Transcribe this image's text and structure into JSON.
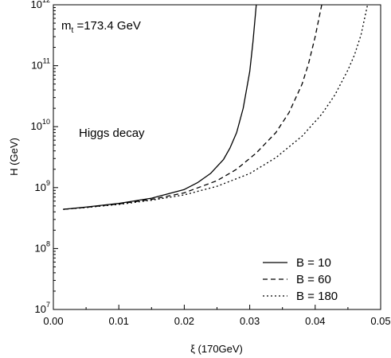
{
  "chart_data": {
    "type": "line",
    "xlabel": "ξ (170GeV)",
    "ylabel": "H (GeV)",
    "xlim": [
      0,
      0.05
    ],
    "ylim": [
      10000000,
      1000000000000
    ],
    "yscale": "log",
    "x_ticks": [
      0,
      0.01,
      0.02,
      0.03,
      0.04,
      0.05
    ],
    "x_tick_labels": [
      "0.00",
      "0.01",
      "0.02",
      "0.03",
      "0.04",
      "0.05"
    ],
    "y_ticks": [
      7,
      8,
      9,
      10,
      11,
      12
    ],
    "y_tick_labels": [
      {
        "base": "10",
        "exp": "7"
      },
      {
        "base": "10",
        "exp": "8"
      },
      {
        "base": "10",
        "exp": "9"
      },
      {
        "base": "10",
        "exp": "10"
      },
      {
        "base": "10",
        "exp": "11"
      },
      {
        "base": "10",
        "exp": "12"
      }
    ],
    "annotations": {
      "mass": {
        "main": "m",
        "sub": "t",
        "rest": " =173.4 GeV"
      },
      "process": "Higgs decay"
    },
    "legend_position": "bottom-right",
    "grid": false,
    "series": [
      {
        "name": "B = 10",
        "style": "solid",
        "x": [
          0.0015,
          0.005,
          0.01,
          0.015,
          0.02,
          0.022,
          0.024,
          0.026,
          0.027,
          0.028,
          0.029,
          0.03,
          0.0305,
          0.031
        ],
        "y": [
          440000000,
          480000000,
          550000000,
          670000000,
          930000000,
          1200000000,
          1700000000,
          2900000000,
          4500000000,
          8000000000,
          20000000000,
          80000000000,
          250000000000,
          1000000000000
        ]
      },
      {
        "name": "B = 60",
        "style": "dashed",
        "x": [
          0.0015,
          0.005,
          0.01,
          0.015,
          0.02,
          0.025,
          0.028,
          0.031,
          0.034,
          0.036,
          0.038,
          0.039,
          0.04,
          0.041
        ],
        "y": [
          440000000,
          475000000,
          540000000,
          640000000,
          820000000,
          1300000000,
          2000000000,
          3700000000,
          8000000000,
          17000000000,
          50000000000,
          110000000000,
          300000000000,
          1000000000000
        ]
      },
      {
        "name": "B = 180",
        "style": "dotted",
        "x": [
          0.0015,
          0.005,
          0.01,
          0.015,
          0.02,
          0.025,
          0.03,
          0.034,
          0.038,
          0.041,
          0.043,
          0.045,
          0.046,
          0.047,
          0.048
        ],
        "y": [
          440000000,
          470000000,
          530000000,
          620000000,
          760000000,
          1050000000,
          1700000000,
          3100000000,
          7000000000,
          16000000000,
          33000000000,
          85000000000,
          150000000000,
          320000000000,
          1000000000000
        ]
      }
    ]
  }
}
